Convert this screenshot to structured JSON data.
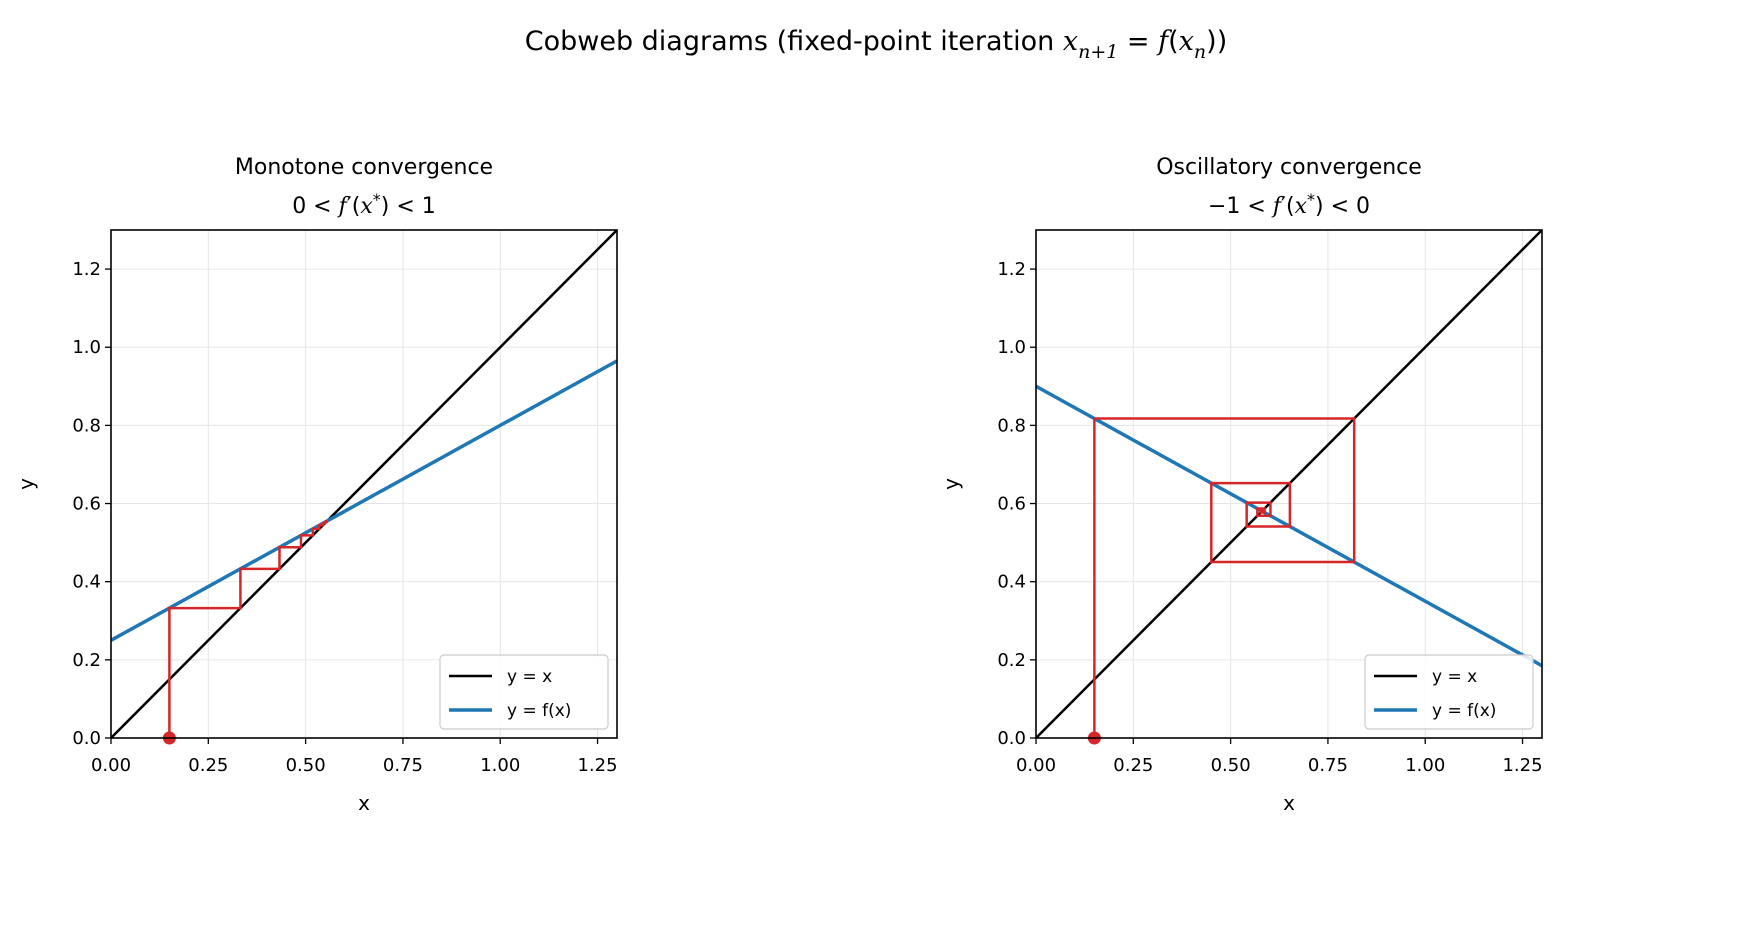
{
  "suptitle": {
    "text": "Cobweb diagrams (fixed-point iteration ",
    "math_x": "x",
    "math_sub1": "n+1",
    "math_eq": " = ",
    "math_f": "f",
    "math_open": "(",
    "math_x2": "x",
    "math_sub2": "n",
    "math_close": ")",
    "tail": ")"
  },
  "chart_data": [
    {
      "type": "line",
      "title": "Monotone convergence",
      "subtitle_text": "0 < f′(x*) < 1",
      "subtitle_parts": {
        "a": "0 < ",
        "f": "f",
        "prime": "′",
        "open": "(",
        "x": "x",
        "star": "*",
        "close": ")",
        "b": " < 1"
      },
      "xlabel": "x",
      "ylabel": "y",
      "xlim": [
        0,
        1.3
      ],
      "ylim": [
        0,
        1.3
      ],
      "xticks": [
        "0.00",
        "0.25",
        "0.50",
        "0.75",
        "1.00",
        "1.25"
      ],
      "yticks": [
        "0.0",
        "0.2",
        "0.4",
        "0.6",
        "0.8",
        "1.0",
        "1.2"
      ],
      "grid": true,
      "legend_position": "lower-right",
      "x0": 0.15,
      "series": [
        {
          "name": "y = x",
          "color": "#000000",
          "slope": 1.0,
          "intercept": 0.0
        },
        {
          "name": "y = f(x)",
          "color": "#1f77b4",
          "slope": 0.55,
          "intercept": 0.25
        }
      ],
      "cobweb_color": "#d62728",
      "iterations": 12
    },
    {
      "type": "line",
      "title": "Oscillatory convergence",
      "subtitle_text": "−1 < f′(x*) < 0",
      "subtitle_parts": {
        "a": "−1 < ",
        "f": "f",
        "prime": "′",
        "open": "(",
        "x": "x",
        "star": "*",
        "close": ")",
        "b": " < 0"
      },
      "xlabel": "x",
      "ylabel": "y",
      "xlim": [
        0,
        1.3
      ],
      "ylim": [
        0,
        1.3
      ],
      "xticks": [
        "0.00",
        "0.25",
        "0.50",
        "0.75",
        "1.00",
        "1.25"
      ],
      "yticks": [
        "0.0",
        "0.2",
        "0.4",
        "0.6",
        "0.8",
        "1.0",
        "1.2"
      ],
      "grid": true,
      "legend_position": "lower-right",
      "x0": 0.15,
      "series": [
        {
          "name": "y = x",
          "color": "#000000",
          "slope": 1.0,
          "intercept": 0.0
        },
        {
          "name": "y = f(x)",
          "color": "#1f77b4",
          "slope": -0.55,
          "intercept": 0.9
        }
      ],
      "cobweb_color": "#d62728",
      "iterations": 12
    }
  ]
}
